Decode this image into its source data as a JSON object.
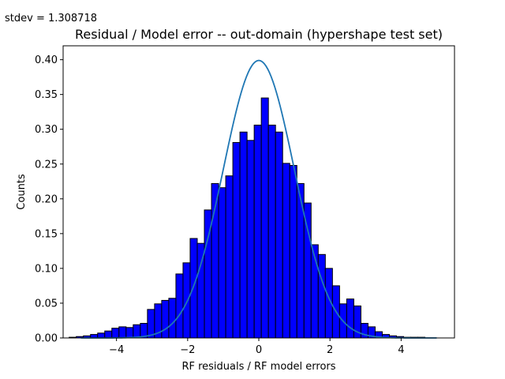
{
  "annotation": "stdev = 1.308718",
  "chart_data": {
    "type": "bar",
    "title": "Residual / Model error -- out-domain (hypershape test set)",
    "xlabel": "RF residuals / RF model errors",
    "ylabel": "Counts",
    "xlim": [
      -5.5,
      5.5
    ],
    "ylim": [
      0,
      0.42
    ],
    "x_ticks": [
      -4,
      -2,
      0,
      2,
      4
    ],
    "x_tick_labels": [
      "−4",
      "−2",
      "0",
      "2",
      "4"
    ],
    "y_ticks": [
      0.0,
      0.05,
      0.1,
      0.15,
      0.2,
      0.25,
      0.3,
      0.35,
      0.4
    ],
    "y_tick_labels": [
      "0.00",
      "0.05",
      "0.10",
      "0.15",
      "0.20",
      "0.25",
      "0.30",
      "0.35",
      "0.40"
    ],
    "grid": false,
    "histogram": {
      "bin_start": -5.33,
      "bin_width": 0.2,
      "bar_color": "#0000ff",
      "edge_color": "#000000",
      "values": [
        0.001,
        0.002,
        0.003,
        0.005,
        0.007,
        0.01,
        0.014,
        0.016,
        0.015,
        0.019,
        0.021,
        0.041,
        0.049,
        0.054,
        0.057,
        0.092,
        0.108,
        0.143,
        0.136,
        0.184,
        0.222,
        0.216,
        0.233,
        0.281,
        0.296,
        0.284,
        0.306,
        0.345,
        0.306,
        0.296,
        0.251,
        0.248,
        0.222,
        0.194,
        0.134,
        0.12,
        0.1,
        0.075,
        0.049,
        0.056,
        0.046,
        0.021,
        0.016,
        0.009,
        0.005,
        0.003,
        0.002,
        0.001,
        0.001,
        0.001
      ]
    },
    "curve": {
      "type": "normal_pdf",
      "mean": 0,
      "std": 1,
      "x_range": [
        -5,
        5
      ],
      "color": "#1f77b4"
    }
  }
}
